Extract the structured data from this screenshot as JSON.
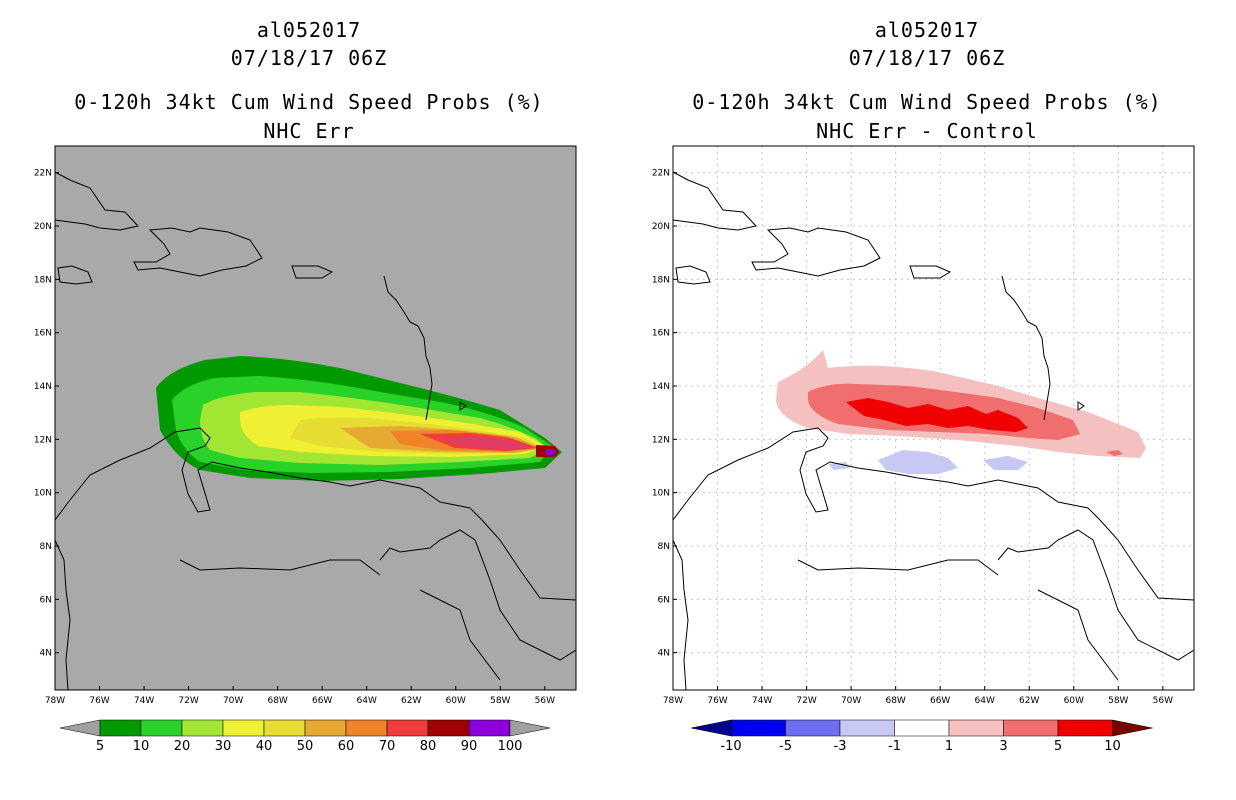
{
  "panels": [
    {
      "storm_id": "al052017",
      "datetime": "07/18/17 06Z",
      "product": "0-120h 34kt Cum Wind Speed Probs (%)",
      "subtitle": "NHC Err",
      "background_color": "#a9a9a9",
      "colorbar": {
        "labels": [
          "5",
          "10",
          "20",
          "30",
          "40",
          "50",
          "60",
          "70",
          "80",
          "90",
          "100"
        ],
        "colors": [
          "#a0a0a0",
          "#009a00",
          "#28d228",
          "#a0e632",
          "#f0f032",
          "#e6dc32",
          "#e6aa32",
          "#f08228",
          "#f03c3c",
          "#a00000",
          "#8c00dc",
          "#a0a0a0"
        ]
      }
    },
    {
      "storm_id": "al052017",
      "datetime": "07/18/17 06Z",
      "product": "0-120h 34kt Cum Wind Speed Probs (%)",
      "subtitle": "NHC Err - Control",
      "background_color": "#ffffff",
      "colorbar": {
        "labels": [
          "-10",
          "-5",
          "-3",
          "-1",
          "1",
          "3",
          "5",
          "10"
        ],
        "colors": [
          "#00008c",
          "#0000f0",
          "#6e6ef0",
          "#c8c8f5",
          "#ffffff",
          "#f5c0c0",
          "#f06e6e",
          "#f00000",
          "#780000"
        ]
      }
    }
  ],
  "map": {
    "lat_labels": [
      "22N",
      "20N",
      "18N",
      "16N",
      "14N",
      "12N",
      "10N",
      "8N",
      "6N",
      "4N"
    ],
    "lon_labels": [
      "78W",
      "76W",
      "74W",
      "72W",
      "70W",
      "68W",
      "66W",
      "64W",
      "62W",
      "60W",
      "58W",
      "56W"
    ],
    "lat_values": [
      22,
      20,
      18,
      16,
      14,
      12,
      10,
      8,
      6,
      4
    ],
    "lon_values": [
      -78,
      -76,
      -74,
      -72,
      -70,
      -68,
      -66,
      -64,
      -62,
      -60,
      -58,
      -56
    ],
    "lat_range": [
      2.6,
      23.0
    ],
    "lon_range": [
      -78.0,
      -54.6
    ]
  }
}
